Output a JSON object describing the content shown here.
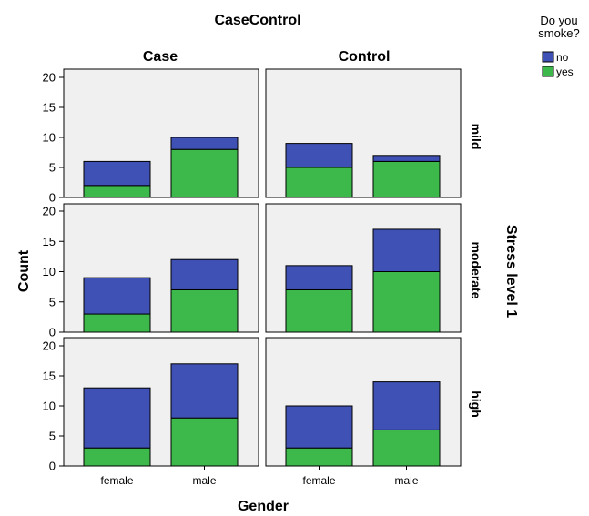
{
  "chart_data": {
    "type": "bar",
    "stacked": true,
    "title": "CaseControl",
    "columns": [
      "Case",
      "Control"
    ],
    "row_axis_label": "Stress level 1",
    "rows": [
      "mild",
      "moderate",
      "high"
    ],
    "xlabel": "Gender",
    "ylabel": "Count",
    "categories": [
      "female",
      "male"
    ],
    "ylim": [
      0,
      20
    ],
    "yticks": [
      0,
      5,
      10,
      15,
      20
    ],
    "legend": {
      "title_line1": "Do you",
      "title_line2": "smoke?",
      "placement": "top-right",
      "items": [
        {
          "label": "no",
          "color": "#3f51b5"
        },
        {
          "label": "yes",
          "color": "#3db84a"
        }
      ]
    },
    "panels": [
      {
        "column": "Case",
        "row": "mild",
        "yes": [
          2,
          8
        ],
        "no": [
          4,
          2
        ]
      },
      {
        "column": "Control",
        "row": "mild",
        "yes": [
          5,
          6
        ],
        "no": [
          4,
          1
        ]
      },
      {
        "column": "Case",
        "row": "moderate",
        "yes": [
          3,
          7
        ],
        "no": [
          6,
          5
        ]
      },
      {
        "column": "Control",
        "row": "moderate",
        "yes": [
          7,
          10
        ],
        "no": [
          4,
          7
        ]
      },
      {
        "column": "Case",
        "row": "high",
        "yes": [
          3,
          8
        ],
        "no": [
          10,
          9
        ]
      },
      {
        "column": "Control",
        "row": "high",
        "yes": [
          3,
          6
        ],
        "no": [
          7,
          8
        ]
      }
    ]
  }
}
